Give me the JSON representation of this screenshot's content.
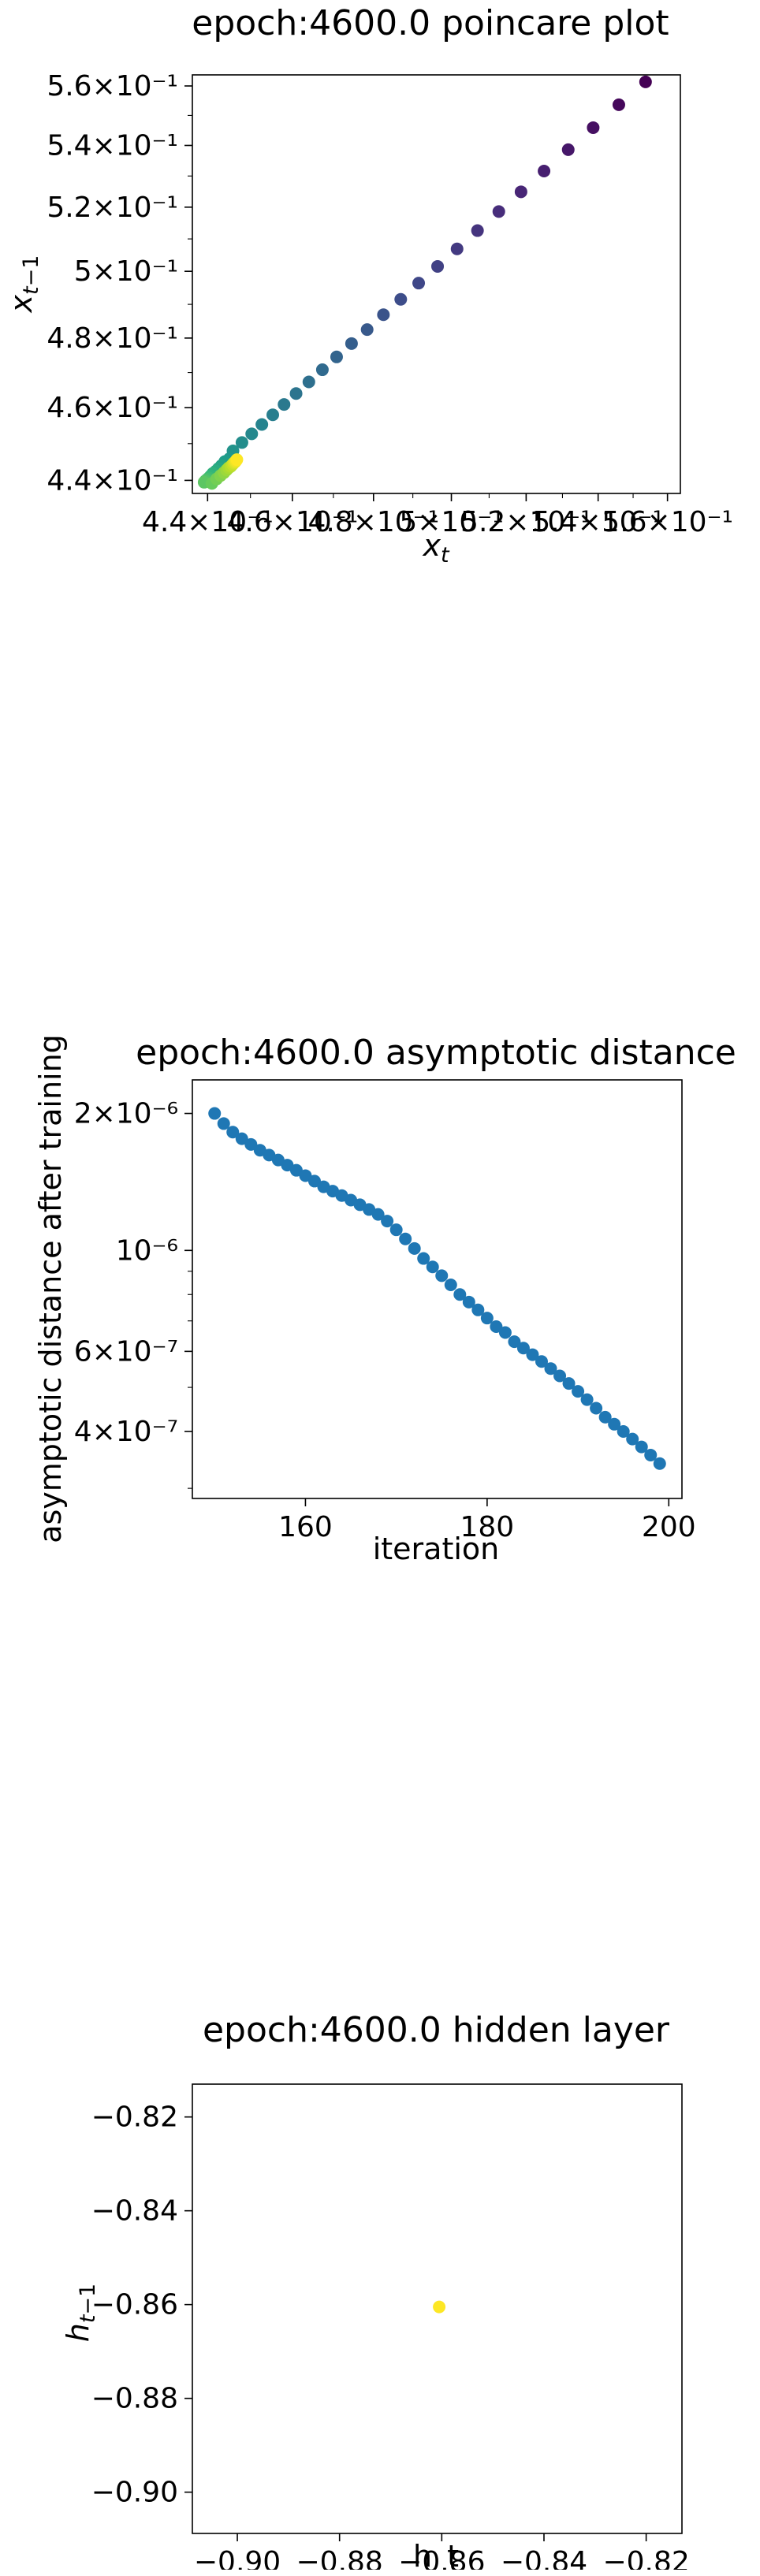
{
  "chart_data": [
    {
      "type": "scatter",
      "title": "epoch:4600.0 poincare plot",
      "xlabel": "x_t",
      "ylabel": "x_{t-1}",
      "xscale": "log",
      "yscale": "log",
      "xlim": [
        0.4365,
        0.5638
      ],
      "ylim": [
        0.4365,
        0.5638
      ],
      "colormap": "viridis",
      "xticks": [
        "4.4×10⁻¹",
        "4.6×10⁻¹",
        "4.8×10⁻¹",
        "5×10⁻¹",
        "5.2×10⁻¹",
        "5.4×10⁻¹",
        "5.6×10⁻¹"
      ],
      "xtick_values": [
        0.44,
        0.46,
        0.48,
        0.5,
        0.52,
        0.54,
        0.56
      ],
      "yticks": [
        "4.4×10⁻¹",
        "4.6×10⁻¹",
        "4.8×10⁻¹",
        "5×10⁻¹",
        "5.2×10⁻¹",
        "5.4×10⁻¹",
        "5.6×10⁻¹"
      ],
      "ytick_values": [
        0.44,
        0.46,
        0.48,
        0.5,
        0.52,
        0.54,
        0.56
      ],
      "x": [
        0.5536,
        0.5459,
        0.5386,
        0.5316,
        0.5249,
        0.5186,
        0.5126,
        0.5069,
        0.5015,
        0.4964,
        0.4915,
        0.4869,
        0.4825,
        0.4784,
        0.4745,
        0.4708,
        0.4673,
        0.464,
        0.4609,
        0.458,
        0.4553,
        0.4527,
        0.4503,
        0.448,
        0.4459,
        0.4451,
        0.444,
        0.4432,
        0.4425,
        0.4419,
        0.4412,
        0.4407,
        0.4403,
        0.4399,
        0.4395,
        0.4392,
        0.441,
        0.4421,
        0.443,
        0.4438,
        0.4444,
        0.4449,
        0.4454,
        0.4458,
        0.4461,
        0.4464,
        0.4466,
        0.4468
      ],
      "y": [
        0.5614,
        0.5536,
        0.5459,
        0.5386,
        0.5316,
        0.5249,
        0.5186,
        0.5126,
        0.5069,
        0.5015,
        0.4964,
        0.4915,
        0.4869,
        0.4825,
        0.4784,
        0.4745,
        0.4708,
        0.4673,
        0.464,
        0.4609,
        0.458,
        0.4553,
        0.4527,
        0.4503,
        0.448,
        0.4459,
        0.4451,
        0.444,
        0.4432,
        0.4425,
        0.4419,
        0.4412,
        0.4407,
        0.4403,
        0.4399,
        0.4395,
        0.4392,
        0.4404,
        0.4413,
        0.4421,
        0.4428,
        0.4434,
        0.4438,
        0.4443,
        0.4447,
        0.445,
        0.4453,
        0.4456
      ]
    },
    {
      "type": "scatter",
      "title": "epoch:4600.0 asymptotic distance",
      "xlabel": "iteration",
      "ylabel": "asymptotic distance after training",
      "xscale": "linear",
      "yscale": "log",
      "xlim": [
        147.55,
        201.45
      ],
      "ylim": [
        2.85e-07,
        2.37e-06
      ],
      "color": "#1f77b4",
      "xticks": [
        "160",
        "180",
        "200"
      ],
      "xtick_values": [
        160,
        180,
        200
      ],
      "yticks": [
        "2×10⁻⁶",
        "10⁻⁶",
        "6×10⁻⁷",
        "4×10⁻⁷"
      ],
      "ytick_values": [
        2e-06,
        1e-06,
        6e-07,
        4e-07
      ],
      "x": [
        150,
        151,
        152,
        153,
        154,
        155,
        156,
        157,
        158,
        159,
        160,
        161,
        162,
        163,
        164,
        165,
        166,
        167,
        168,
        169,
        170,
        171,
        172,
        173,
        174,
        175,
        176,
        177,
        178,
        179,
        180,
        181,
        182,
        183,
        184,
        185,
        186,
        187,
        188,
        189,
        190,
        191,
        192,
        193,
        194,
        195,
        196,
        197,
        198,
        199
      ],
      "y": [
        2e-06,
        1.9e-06,
        1.82e-06,
        1.76e-06,
        1.71e-06,
        1.66e-06,
        1.62e-06,
        1.58e-06,
        1.54e-06,
        1.5e-06,
        1.46e-06,
        1.42e-06,
        1.38e-06,
        1.35e-06,
        1.32e-06,
        1.29e-06,
        1.26e-06,
        1.23e-06,
        1.2e-06,
        1.16e-06,
        1.11e-06,
        1.06e-06,
        1.01e-06,
        9.6e-07,
        9.2e-07,
        8.8e-07,
        8.4e-07,
        8e-07,
        7.7e-07,
        7.4e-07,
        7.1e-07,
        6.8e-07,
        6.6e-07,
        6.3e-07,
        6.1e-07,
        5.9e-07,
        5.7e-07,
        5.5e-07,
        5.3e-07,
        5.1e-07,
        4.9e-07,
        4.7e-07,
        4.5e-07,
        4.3e-07,
        4.15e-07,
        4e-07,
        3.85e-07,
        3.7e-07,
        3.55e-07,
        3.4e-07
      ]
    },
    {
      "type": "scatter",
      "title": "epoch:4600.0 hidden layer",
      "xlabel": "h_t",
      "ylabel": "h_{t-1}",
      "xscale": "linear",
      "yscale": "linear",
      "xlim": [
        -0.9088,
        -0.813
      ],
      "ylim": [
        -0.9088,
        -0.813
      ],
      "color": "#fde725",
      "xticks": [
        "−0.90",
        "−0.88",
        "−0.86",
        "−0.84",
        "−0.82"
      ],
      "xtick_values": [
        -0.9,
        -0.88,
        -0.86,
        -0.84,
        -0.82
      ],
      "yticks": [
        "−0.82",
        "−0.84",
        "−0.86",
        "−0.88",
        "−0.90"
      ],
      "ytick_values": [
        -0.82,
        -0.84,
        -0.86,
        -0.88,
        -0.9
      ],
      "x": [
        -0.8605
      ],
      "y": [
        -0.8605
      ]
    }
  ]
}
